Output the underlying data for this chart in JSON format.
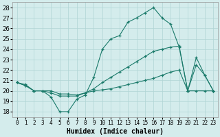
{
  "xlabel": "Humidex (Indice chaleur)",
  "background_color": "#d4ecec",
  "grid_color": "#b0d4d4",
  "line_color": "#1a7a6a",
  "x_ticks": [
    0,
    1,
    2,
    3,
    4,
    5,
    6,
    7,
    8,
    9,
    10,
    11,
    12,
    13,
    14,
    15,
    16,
    17,
    18,
    19,
    20,
    21,
    22,
    23
  ],
  "y_ticks": [
    18,
    19,
    20,
    21,
    22,
    23,
    24,
    25,
    26,
    27,
    28
  ],
  "ylim": [
    17.5,
    28.5
  ],
  "xlim": [
    -0.5,
    23.5
  ],
  "line1_y": [
    20.8,
    20.6,
    20.0,
    20.0,
    19.4,
    18.0,
    18.0,
    19.2,
    19.6,
    21.3,
    24.0,
    25.0,
    25.3,
    26.6,
    27.0,
    27.5,
    28.0,
    27.0,
    26.4,
    24.2,
    20.0,
    23.2,
    21.5,
    20.0
  ],
  "line2_y": [
    20.8,
    20.5,
    20.0,
    20.0,
    20.0,
    19.7,
    19.7,
    19.6,
    19.8,
    20.2,
    20.8,
    21.3,
    21.8,
    22.3,
    22.8,
    23.3,
    23.8,
    24.0,
    24.2,
    24.3,
    20.0,
    22.5,
    21.5,
    20.0
  ],
  "line3_y": [
    20.8,
    20.5,
    20.0,
    20.0,
    19.8,
    19.5,
    19.5,
    19.5,
    19.8,
    20.0,
    20.1,
    20.2,
    20.4,
    20.6,
    20.8,
    21.0,
    21.2,
    21.5,
    21.8,
    22.0,
    20.0,
    20.0,
    20.0,
    20.0
  ]
}
